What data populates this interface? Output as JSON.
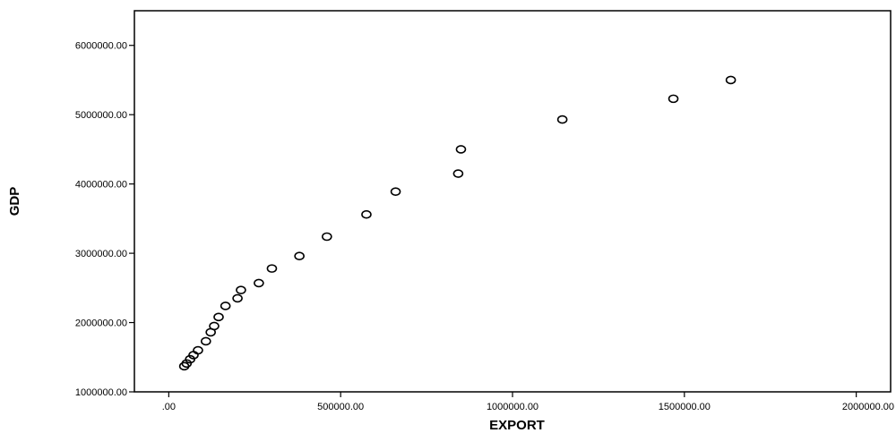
{
  "chart_data": {
    "type": "scatter",
    "title": "",
    "xlabel": "EXPORT",
    "ylabel": "GDP",
    "xlim": [
      -100000,
      2100000
    ],
    "ylim": [
      1000000,
      6500000
    ],
    "x_ticks": [
      0,
      500000,
      1000000,
      1500000,
      2000000
    ],
    "x_tick_labels": [
      ".00",
      "500000.00",
      "1000000.00",
      "1500000.00",
      "2000000.00"
    ],
    "y_ticks": [
      1000000,
      2000000,
      3000000,
      4000000,
      5000000,
      6000000
    ],
    "y_tick_labels": [
      "1000000.00",
      "2000000.00",
      "3000000.00",
      "4000000.00",
      "5000000.00",
      "6000000.00"
    ],
    "grid": false,
    "legend": "none",
    "marker": "hollow-circle",
    "points": [
      {
        "x": 45000,
        "y": 1370000
      },
      {
        "x": 52000,
        "y": 1410000
      },
      {
        "x": 62000,
        "y": 1470000
      },
      {
        "x": 72000,
        "y": 1530000
      },
      {
        "x": 85000,
        "y": 1600000
      },
      {
        "x": 108000,
        "y": 1730000
      },
      {
        "x": 122000,
        "y": 1860000
      },
      {
        "x": 132000,
        "y": 1950000
      },
      {
        "x": 145000,
        "y": 2080000
      },
      {
        "x": 165000,
        "y": 2240000
      },
      {
        "x": 200000,
        "y": 2350000
      },
      {
        "x": 210000,
        "y": 2470000
      },
      {
        "x": 262000,
        "y": 2570000
      },
      {
        "x": 300000,
        "y": 2780000
      },
      {
        "x": 380000,
        "y": 2960000
      },
      {
        "x": 460000,
        "y": 3240000
      },
      {
        "x": 575000,
        "y": 3560000
      },
      {
        "x": 660000,
        "y": 3890000
      },
      {
        "x": 842000,
        "y": 4150000
      },
      {
        "x": 850000,
        "y": 4500000
      },
      {
        "x": 1145000,
        "y": 4930000
      },
      {
        "x": 1468000,
        "y": 5230000
      },
      {
        "x": 1635000,
        "y": 5500000
      }
    ]
  }
}
